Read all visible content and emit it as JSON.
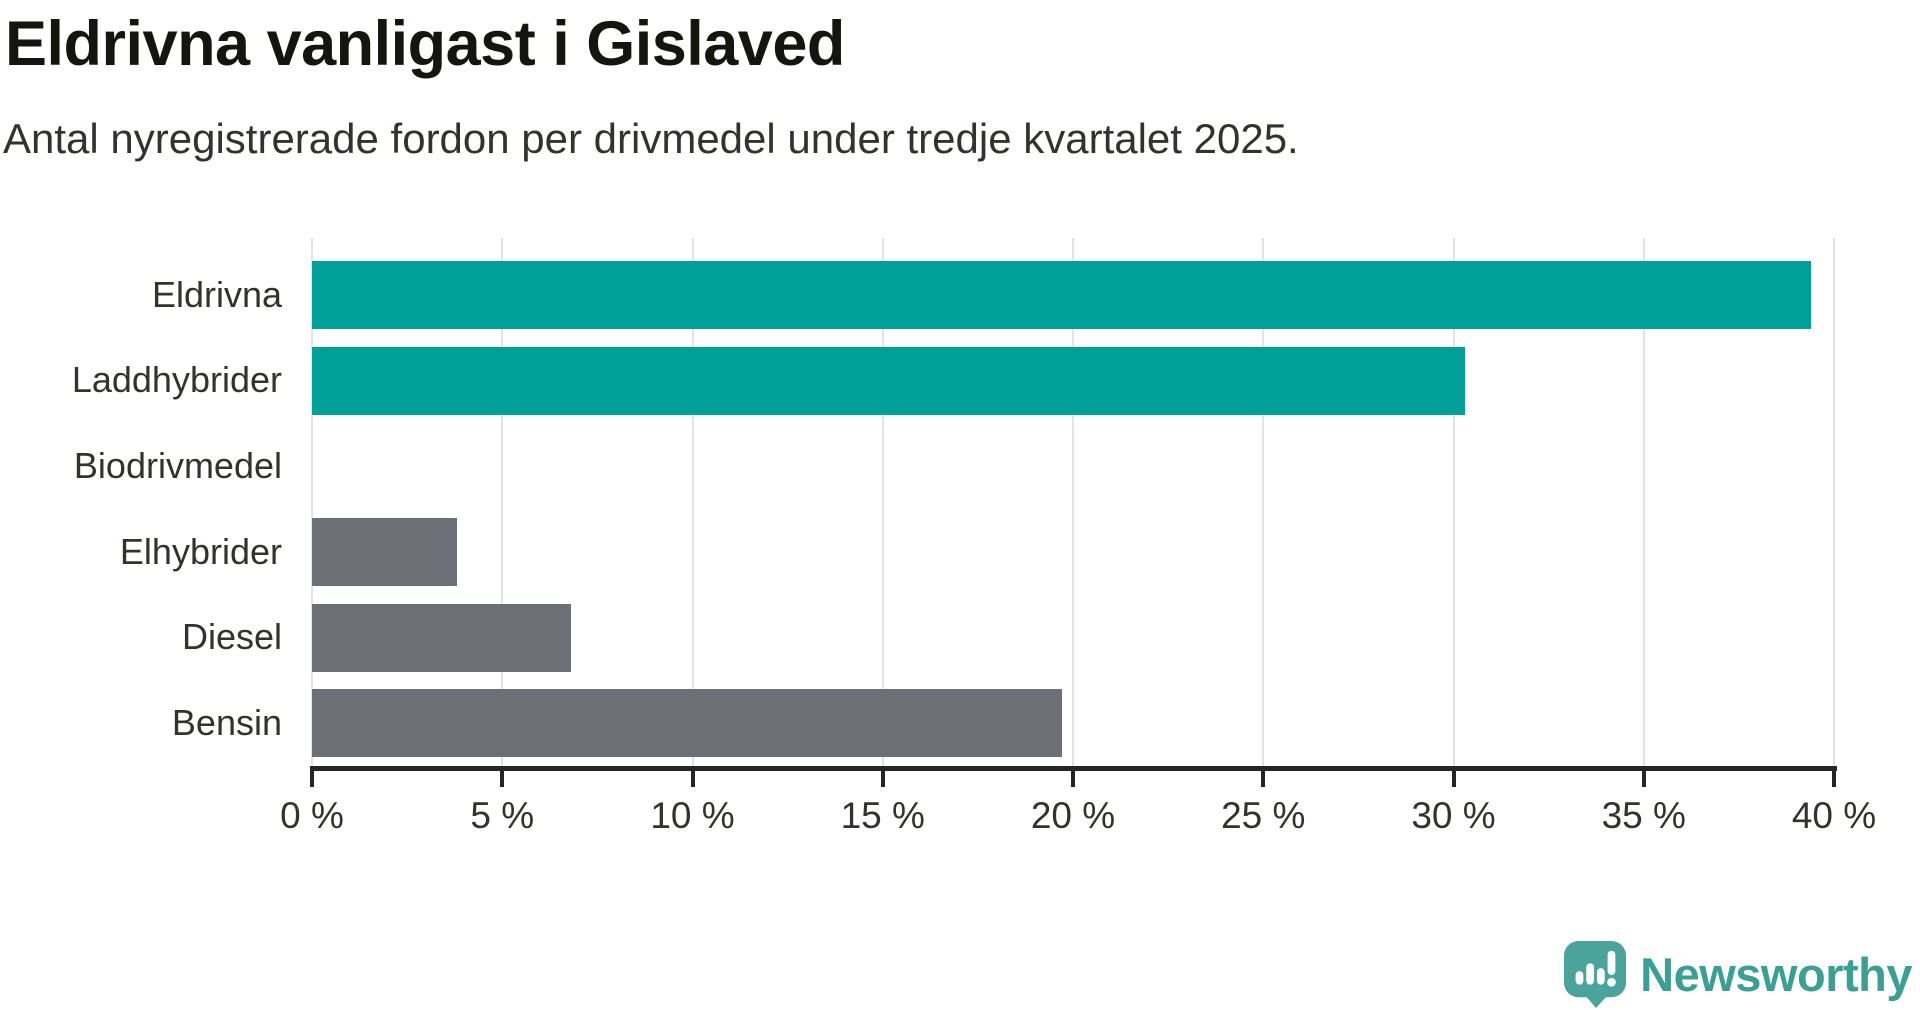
{
  "chart_data": {
    "type": "bar",
    "orientation": "horizontal",
    "title": "Eldrivna vanligast i Gislaved",
    "subtitle": "Antal nyregistrerade fordon per drivmedel under tredje kvartalet 2025.",
    "categories": [
      "Eldrivna",
      "Laddhybrider",
      "Biodrivmedel",
      "Elhybrider",
      "Diesel",
      "Bensin"
    ],
    "values": [
      39.4,
      30.3,
      0,
      3.8,
      6.8,
      19.7
    ],
    "unit": "%",
    "xlabel": "",
    "ylabel": "",
    "xlim": [
      0,
      40
    ],
    "x_ticks": [
      0,
      5,
      10,
      15,
      20,
      25,
      30,
      35,
      40
    ],
    "x_tick_format": "{v} %",
    "grid": true,
    "legend": false,
    "bar_colors": [
      "#00a099",
      "#00a099",
      "#6e6e76",
      "#6e6e76",
      "#6e6e76",
      "#6e6e76"
    ]
  },
  "colors": {
    "highlight_bar": "#00a099",
    "default_bar": "#6e6e76",
    "gridline": "#e3e3e3",
    "axis": "#252525",
    "title_text": "#15150f",
    "body_text": "#33332e",
    "logo_icon": "#4aa49c",
    "logo_text": "#3aa094"
  },
  "footer": {
    "brand": "Newsworthy"
  }
}
